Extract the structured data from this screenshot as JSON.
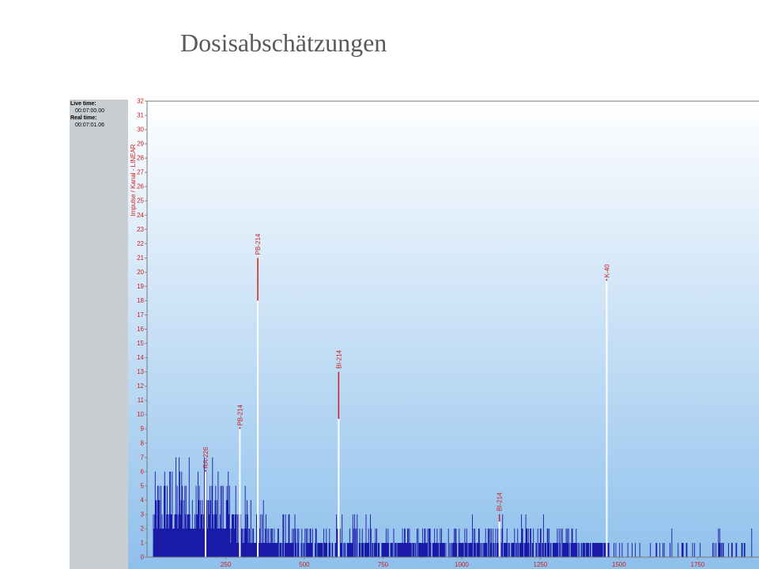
{
  "slide": {
    "title": "Dosisabschätzungen"
  },
  "info": {
    "live_time_label": "Live time:",
    "live_time_value": "00:07:00.00",
    "real_time_label": "Real time:",
    "real_time_value": "00:07:01.06"
  },
  "colors": {
    "background_top": "#ffffff",
    "background_bottom": "#8ec0ec",
    "spectrum": "#1a1aa8",
    "marker": "#cc1f1f",
    "axis_text": "#cc1f1f",
    "panel": "#c9ced3"
  },
  "chart_data": {
    "type": "bar",
    "title": "",
    "xlabel": "",
    "ylabel": "Impulse / Kanal - LINEAR",
    "ylim": [
      0,
      32
    ],
    "xlim": [
      0,
      1945
    ],
    "y_ticks": [
      0,
      1,
      2,
      3,
      4,
      5,
      6,
      7,
      8,
      9,
      10,
      11,
      12,
      13,
      14,
      15,
      16,
      17,
      18,
      19,
      20,
      21,
      22,
      23,
      24,
      25,
      26,
      27,
      28,
      29,
      30,
      31,
      32
    ],
    "x_ticks": [
      250,
      500,
      750,
      1000,
      1250,
      1500,
      1750
    ],
    "grid": false,
    "peaks": [
      {
        "label": "RA-226",
        "x": 186,
        "y": 6,
        "marker_top": 6
      },
      {
        "label": "PB-214",
        "x": 295,
        "y": 9,
        "marker_top": 9
      },
      {
        "label": "PB-214",
        "x": 352,
        "y": 18,
        "marker_top": 21
      },
      {
        "label": "BI-214",
        "x": 609,
        "y": 9.7,
        "marker_top": 13
      },
      {
        "label": "BI-214",
        "x": 1120,
        "y": 2.5,
        "marker_top": 3
      },
      {
        "label": "K-40",
        "x": 1461,
        "y": 19.4,
        "marker_top": 19.4
      }
    ],
    "spectrum_envelope": [
      {
        "x": 20,
        "y": 6
      },
      {
        "x": 100,
        "y": 8
      },
      {
        "x": 200,
        "y": 7
      },
      {
        "x": 300,
        "y": 5
      },
      {
        "x": 400,
        "y": 3
      },
      {
        "x": 500,
        "y": 2
      },
      {
        "x": 750,
        "y": 2
      },
      {
        "x": 1000,
        "y": 2
      },
      {
        "x": 1250,
        "y": 2
      },
      {
        "x": 1500,
        "y": 1
      },
      {
        "x": 1750,
        "y": 1
      },
      {
        "x": 1945,
        "y": 1
      }
    ]
  }
}
